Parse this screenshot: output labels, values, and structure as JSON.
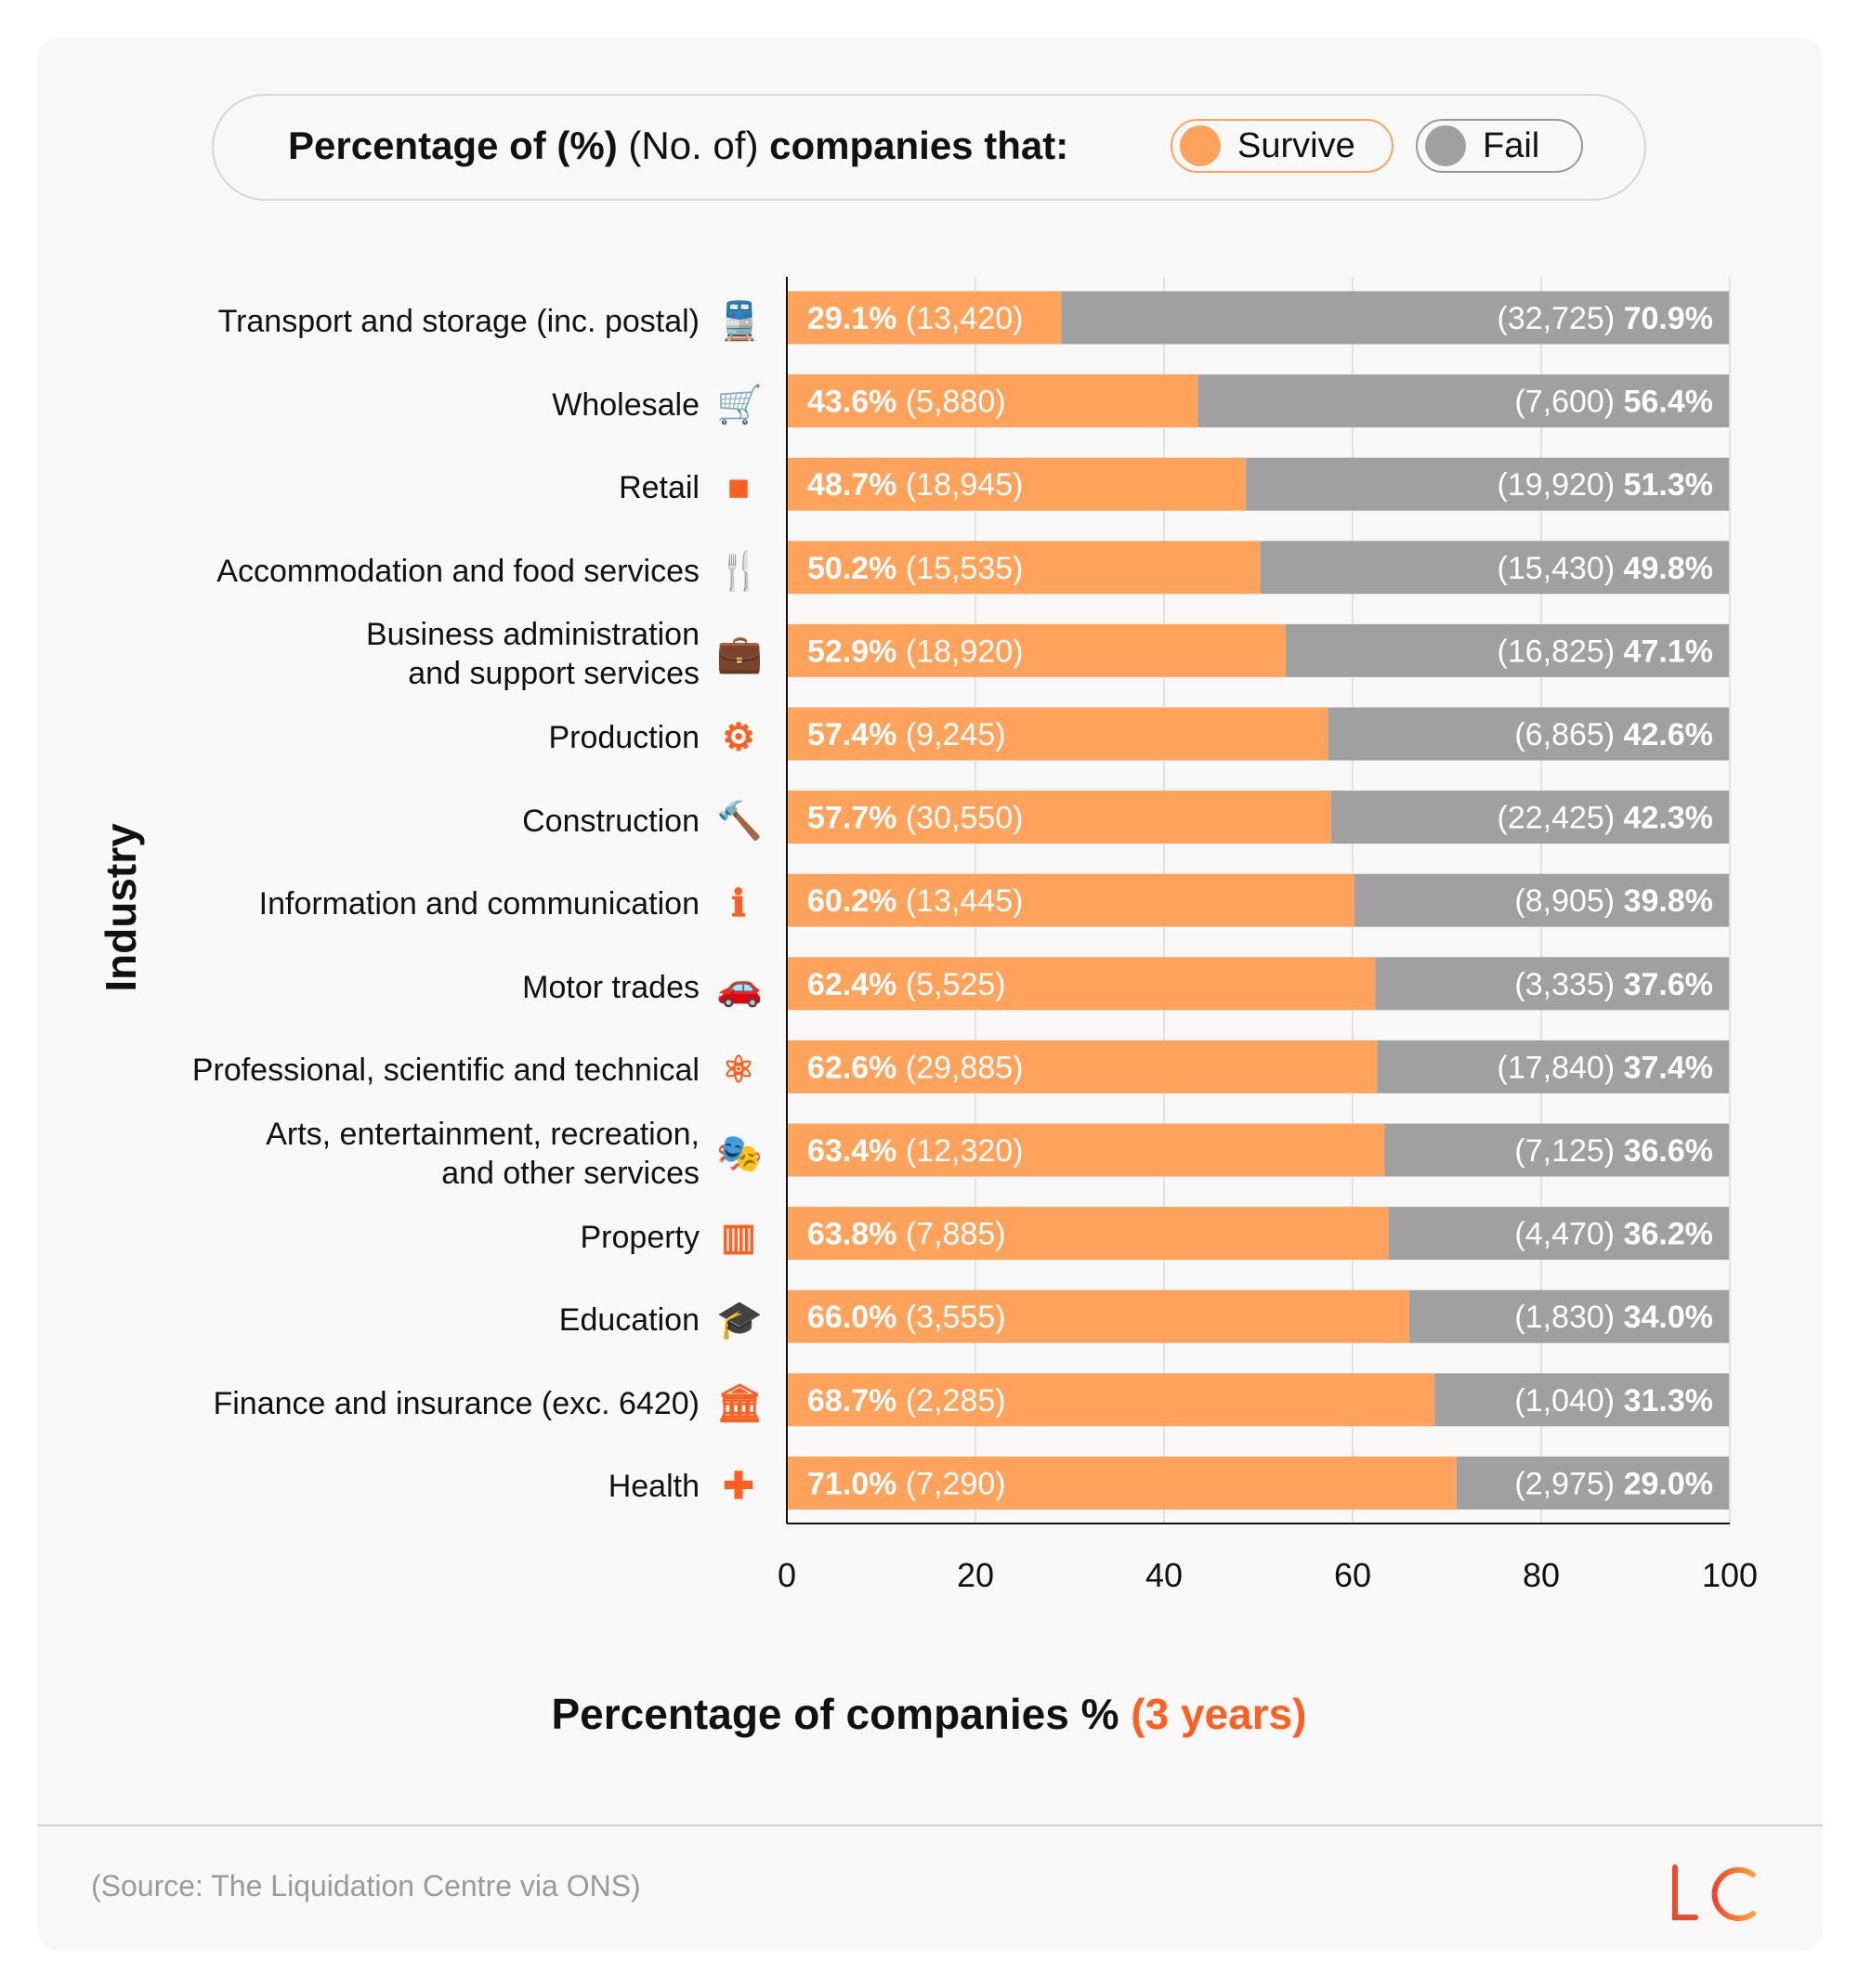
{
  "legend": {
    "title_bold_1": "Percentage of (%)",
    "title_light": "(No. of)",
    "title_bold_2": "companies that:",
    "survive": "Survive",
    "fail": "Fail"
  },
  "colors": {
    "survive": "#ffa25c",
    "fail": "#a0a0a0",
    "icon": "#ff5f1f",
    "accent": "#ff5f1f"
  },
  "chart_data": {
    "type": "bar",
    "stacked": true,
    "orientation": "horizontal",
    "xlabel": "Percentage of companies %",
    "xlabel_accent": "(3 years)",
    "ylabel": "Industry",
    "xlim": [
      0,
      100
    ],
    "xticks": [
      "0",
      "20",
      "40",
      "60",
      "80",
      "100"
    ],
    "grid": true,
    "legend_position": "top",
    "categories": [
      "Transport and storage (inc. postal)",
      "Wholesale",
      "Retail",
      "Accommodation and food services",
      "Business administration\nand support services",
      "Production",
      "Construction",
      "Information and communication",
      "Motor trades",
      "Professional, scientific and technical",
      "Arts, entertainment, recreation,\nand other services",
      "Property",
      "Education",
      "Finance and insurance (exc. 6420)",
      "Health"
    ],
    "icons": [
      "train-icon",
      "cart-icon",
      "shopping-bag-icon",
      "fork-knife-icon",
      "briefcase-icon",
      "gear-icon",
      "hammer-icon",
      "info-chat-icon",
      "car-icon",
      "atom-icon",
      "theatre-masks-icon",
      "building-icon",
      "graduation-cap-icon",
      "bank-icon",
      "medical-cross-icon"
    ],
    "series": [
      {
        "name": "Survive",
        "values": [
          29.1,
          43.6,
          48.7,
          50.2,
          52.9,
          57.4,
          57.7,
          60.2,
          62.4,
          62.6,
          63.4,
          63.8,
          66.0,
          68.7,
          71.0
        ],
        "counts": [
          "13,420",
          "5,880",
          "18,945",
          "15,535",
          "18,920",
          "9,245",
          "30,550",
          "13,445",
          "5,525",
          "29,885",
          "12,320",
          "7,885",
          "3,555",
          "2,285",
          "7,290"
        ]
      },
      {
        "name": "Fail",
        "values": [
          70.9,
          56.4,
          51.3,
          49.8,
          47.1,
          42.6,
          42.3,
          39.8,
          37.6,
          37.4,
          36.6,
          36.2,
          34.0,
          31.3,
          29.0
        ],
        "counts": [
          "32,725",
          "7,600",
          "19,920",
          "15,430",
          "16,825",
          "6,865",
          "22,425",
          "8,905",
          "3,335",
          "17,840",
          "7,125",
          "4,470",
          "1,830",
          "1,040",
          "2,975"
        ]
      }
    ]
  },
  "footer": {
    "source": "(Source: The Liquidation Centre via ONS)",
    "logo": "LC"
  }
}
